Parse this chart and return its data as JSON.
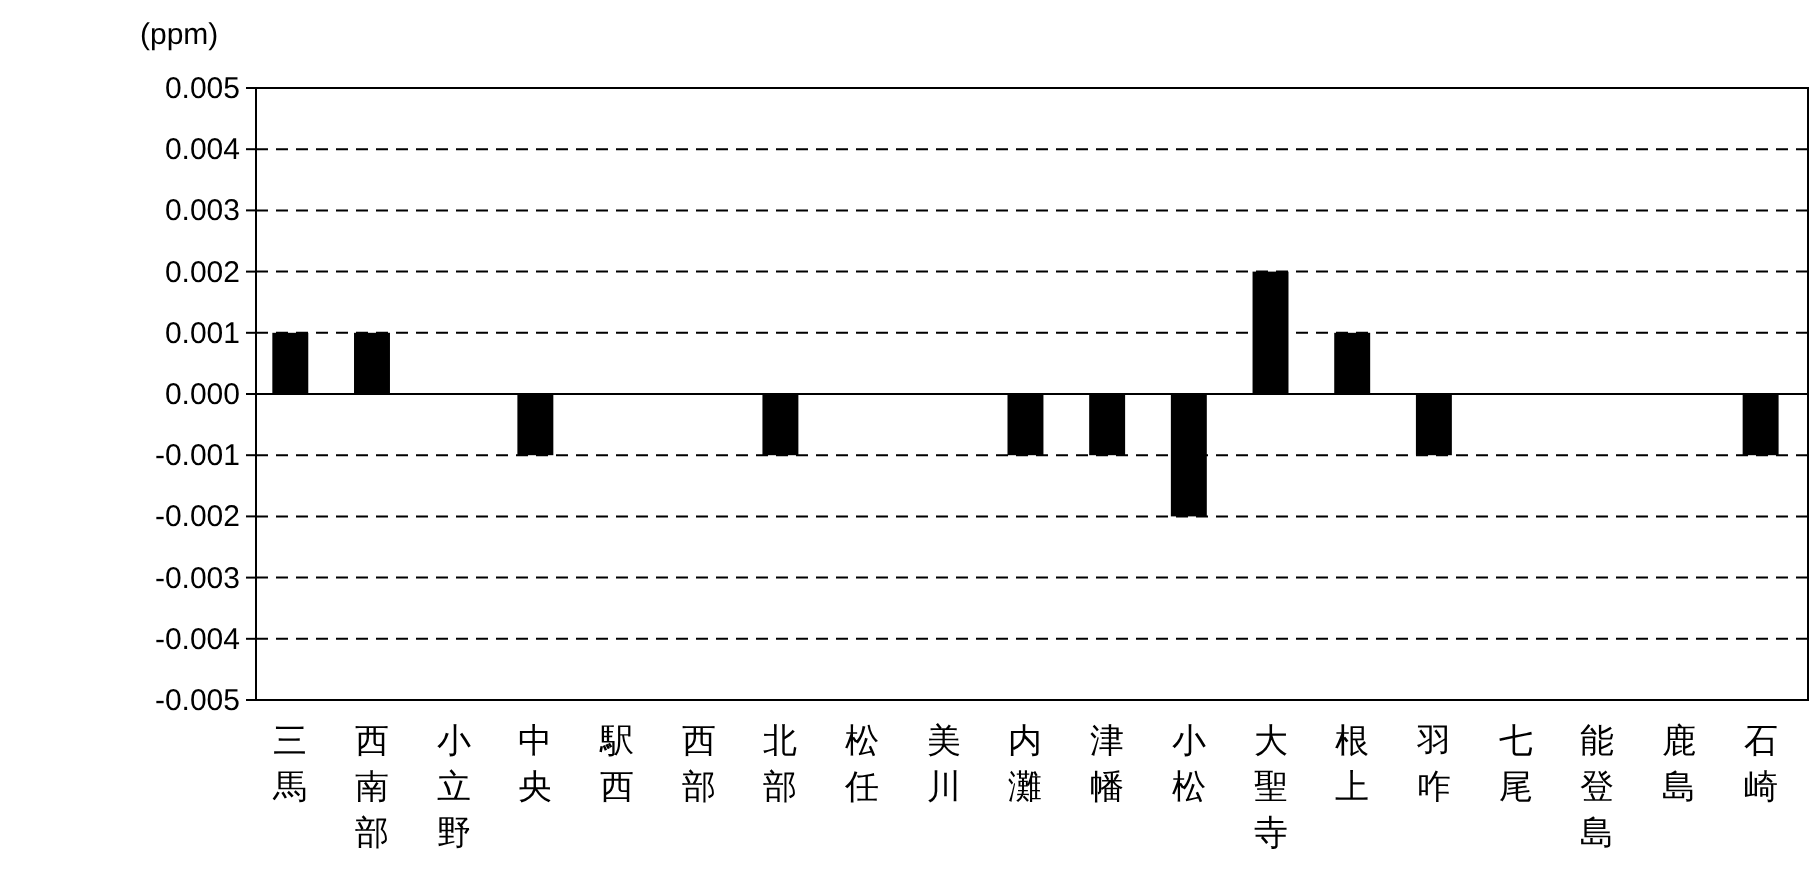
{
  "chart_data": {
    "type": "bar",
    "ylabel": "(ppm)",
    "categories": [
      "三馬",
      "西南部",
      "小立野",
      "中央",
      "駅西",
      "西部",
      "北部",
      "松任",
      "美川",
      "内灘",
      "津幡",
      "小松",
      "大聖寺",
      "根上",
      "羽咋",
      "七尾",
      "能登島",
      "鹿島",
      "石崎"
    ],
    "values": [
      0.001,
      0.001,
      0,
      -0.001,
      0,
      0,
      -0.001,
      0,
      0,
      -0.001,
      -0.001,
      -0.002,
      0.002,
      0.001,
      -0.001,
      0,
      0,
      0,
      -0.001
    ],
    "color": "#000000",
    "ylim": [
      -0.005,
      0.005
    ],
    "yticks": [
      {
        "value": -0.005,
        "label": "-0.005"
      },
      {
        "value": -0.004,
        "label": "-0.004"
      },
      {
        "value": -0.003,
        "label": "-0.003"
      },
      {
        "value": -0.002,
        "label": "-0.002"
      },
      {
        "value": -0.001,
        "label": "-0.001"
      },
      {
        "value": 0,
        "label": "0.000"
      },
      {
        "value": 0.001,
        "label": "0.001"
      },
      {
        "value": 0.002,
        "label": "0.002"
      },
      {
        "value": 0.003,
        "label": "0.003"
      },
      {
        "value": 0.004,
        "label": "0.004"
      },
      {
        "value": 0.005,
        "label": "0.005"
      }
    ],
    "grid": "y",
    "line_style": "dashed"
  }
}
